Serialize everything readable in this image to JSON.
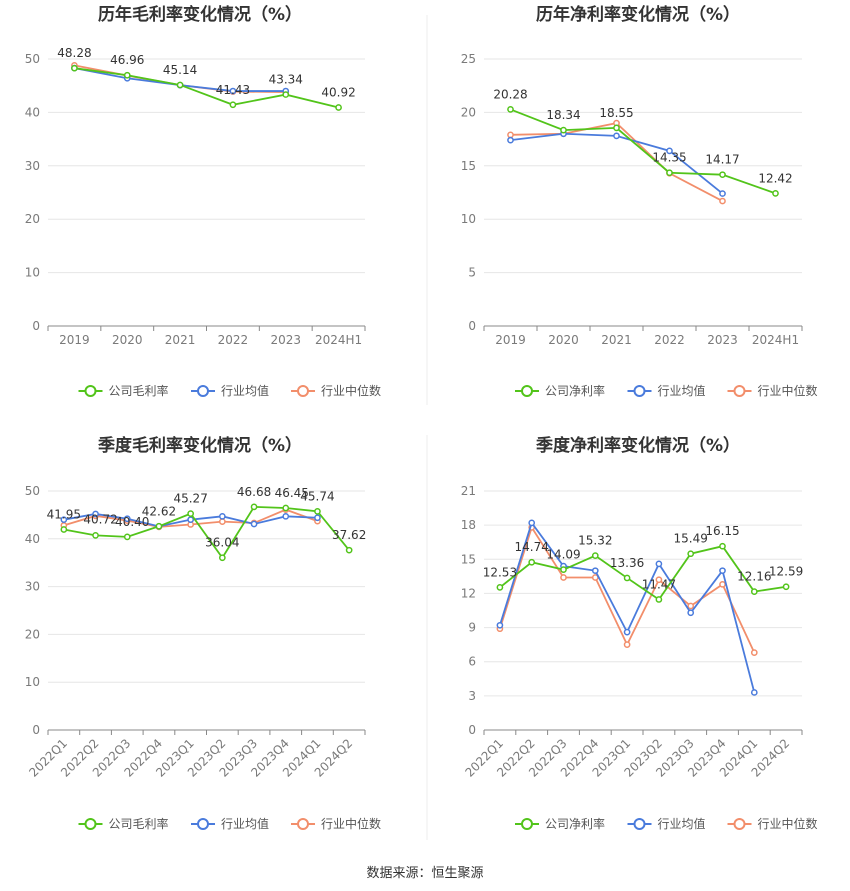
{
  "source": "数据来源：恒生聚源",
  "colors": {
    "company": "#52c41a",
    "industry_avg": "#4a7bdc",
    "industry_median": "#f28e6b"
  },
  "chart_data": [
    {
      "type": "line",
      "title": "历年毛利率变化情况（%）",
      "categories": [
        "2019",
        "2020",
        "2021",
        "2022",
        "2023",
        "2024H1"
      ],
      "ylim": [
        0,
        50
      ],
      "yticks": [
        "0",
        "10",
        "20",
        "30",
        "40",
        "50"
      ],
      "grid": true,
      "legend": "bottom",
      "series": [
        {
          "name": "公司毛利率",
          "values": [
            48.28,
            46.96,
            45.14,
            41.43,
            43.34,
            40.92
          ],
          "labels": [
            "48.28",
            "46.96",
            "45.14",
            "41.43",
            "43.34",
            "40.92"
          ]
        },
        {
          "name": "行业均值",
          "values": [
            48.3,
            46.4,
            45.1,
            44.0,
            44.0,
            null
          ]
        },
        {
          "name": "行业中位数",
          "values": [
            48.8,
            46.9,
            45.1,
            43.9,
            43.8,
            null
          ]
        }
      ]
    },
    {
      "type": "line",
      "title": "历年净利率变化情况（%）",
      "categories": [
        "2019",
        "2020",
        "2021",
        "2022",
        "2023",
        "2024H1"
      ],
      "ylim": [
        0,
        25
      ],
      "yticks": [
        "0",
        "5",
        "10",
        "15",
        "20",
        "25"
      ],
      "grid": true,
      "legend": "bottom",
      "series": [
        {
          "name": "公司净利率",
          "values": [
            20.28,
            18.34,
            18.55,
            14.35,
            14.17,
            12.42
          ],
          "labels": [
            "20.28",
            "18.34",
            "18.55",
            "14.35",
            "14.17",
            "12.42"
          ]
        },
        {
          "name": "行业均值",
          "values": [
            17.4,
            18.0,
            17.8,
            16.4,
            12.4,
            null
          ]
        },
        {
          "name": "行业中位数",
          "values": [
            17.9,
            18.0,
            19.0,
            14.3,
            11.7,
            null
          ]
        }
      ]
    },
    {
      "type": "line",
      "title": "季度毛利率变化情况（%）",
      "categories": [
        "2022Q1",
        "2022Q2",
        "2022Q3",
        "2022Q4",
        "2023Q1",
        "2023Q2",
        "2023Q3",
        "2023Q4",
        "2024Q1",
        "2024Q2"
      ],
      "ylim": [
        0,
        50
      ],
      "yticks": [
        "0",
        "10",
        "20",
        "30",
        "40",
        "50"
      ],
      "grid": true,
      "legend": "bottom",
      "series": [
        {
          "name": "公司毛利率",
          "values": [
            41.95,
            40.72,
            40.4,
            42.62,
            45.27,
            36.04,
            46.68,
            46.45,
            45.74,
            37.62
          ],
          "labels": [
            "41.95",
            "40.72",
            "40.40",
            "42.62",
            "45.27",
            "36.04",
            "46.68",
            "46.45",
            "45.74",
            "37.62"
          ]
        },
        {
          "name": "行业均值",
          "values": [
            44.0,
            45.2,
            44.2,
            42.6,
            44.0,
            44.7,
            43.1,
            44.7,
            44.4,
            null
          ]
        },
        {
          "name": "行业中位数",
          "values": [
            42.8,
            44.8,
            43.8,
            42.5,
            43.0,
            43.6,
            43.3,
            46.1,
            43.7,
            null
          ]
        }
      ]
    },
    {
      "type": "line",
      "title": "季度净利率变化情况（%）",
      "categories": [
        "2022Q1",
        "2022Q2",
        "2022Q3",
        "2022Q4",
        "2023Q1",
        "2023Q2",
        "2023Q3",
        "2023Q4",
        "2024Q1",
        "2024Q2"
      ],
      "ylim": [
        0,
        21
      ],
      "yticks": [
        "0",
        "3",
        "6",
        "9",
        "12",
        "15",
        "18",
        "21"
      ],
      "grid": true,
      "legend": "bottom",
      "series": [
        {
          "name": "公司净利率",
          "values": [
            12.53,
            14.74,
            14.09,
            15.32,
            13.36,
            11.47,
            15.49,
            16.15,
            12.16,
            12.59
          ],
          "labels": [
            "12.53",
            "14.74",
            "14.09",
            "15.32",
            "13.36",
            "11.47",
            "15.49",
            "16.15",
            "12.16",
            "12.59"
          ]
        },
        {
          "name": "行业均值",
          "values": [
            9.2,
            18.2,
            14.4,
            14.0,
            8.6,
            14.6,
            10.3,
            14.0,
            3.3,
            null
          ]
        },
        {
          "name": "行业中位数",
          "values": [
            8.9,
            17.8,
            13.4,
            13.4,
            7.5,
            13.2,
            10.9,
            12.8,
            6.8,
            null
          ]
        }
      ]
    }
  ]
}
